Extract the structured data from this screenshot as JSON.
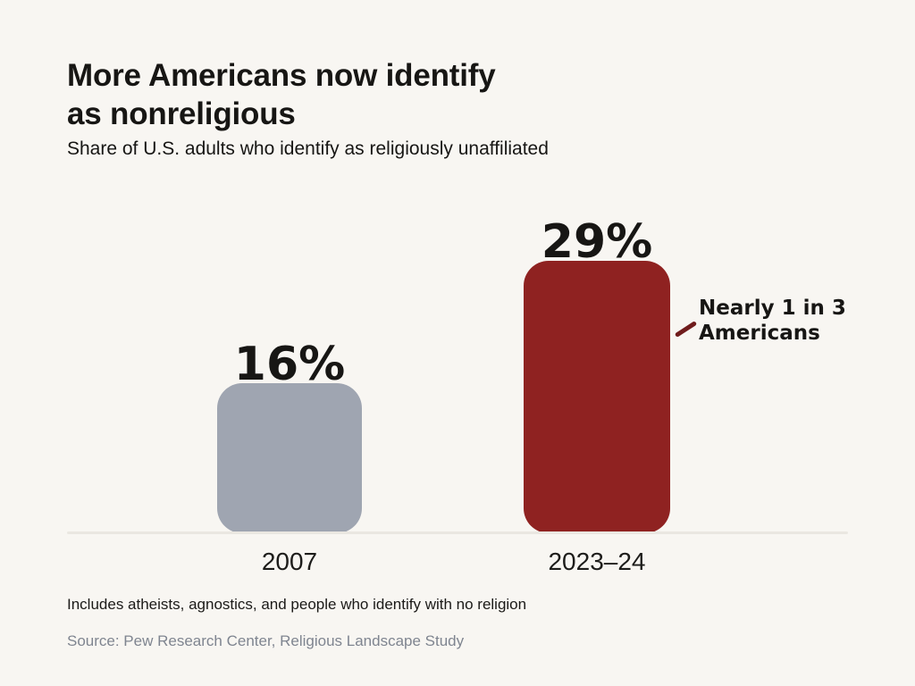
{
  "header": {
    "title_line1": "More Americans now identify",
    "title_line2": "as nonreligious",
    "subtitle": "Share of U.S. adults who identify as religiously unaffiliated"
  },
  "chart_data": {
    "type": "bar",
    "title": "More Americans now identify as nonreligious",
    "subtitle": "Share of U.S. adults who identify as religiously unaffiliated",
    "categories": [
      "2007",
      "2023–24"
    ],
    "values": [
      16,
      29
    ],
    "value_labels": [
      "16%",
      "29%"
    ],
    "bar_colors": [
      "#9FA5B1",
      "#8F2221"
    ],
    "ylim": [
      0,
      29
    ],
    "grid": false,
    "legend": false,
    "annotation": {
      "line1": "Nearly 1 in 3",
      "line2": "Americans",
      "target_category": "2023–24"
    },
    "footnote": "Includes atheists, agnostics, and people who identify with no religion",
    "source": "Source: Pew Research Center, Religious Landscape Study"
  },
  "colors": {
    "background": "#F8F6F2",
    "text": "#171614",
    "bar_2007": "#9FA5B1",
    "bar_2023_24": "#8F2221",
    "baseline": "#EAE7E1",
    "annotation_tick": "#701C1C",
    "source_text": "#7F8590"
  },
  "footer": {
    "footnote": "Includes atheists, agnostics, and people who identify with no religion",
    "source": "Source: Pew Research Center, Religious Landscape Study"
  }
}
